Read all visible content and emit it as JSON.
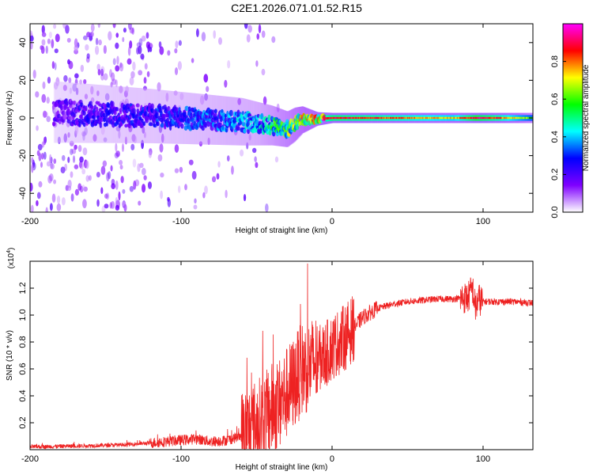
{
  "title": "C2E1.2026.071.01.52.R15",
  "chart_data": [
    {
      "type": "heatmap",
      "xlabel": "Height of straight line (km)",
      "ylabel": "Frequency (Hz)",
      "xlim": [
        -200,
        133
      ],
      "ylim": [
        -50,
        50
      ],
      "xticks": [
        -200,
        -100,
        0,
        100
      ],
      "yticks": [
        -40,
        -20,
        0,
        20,
        40
      ],
      "colorbar": {
        "label": "Normalized spectral amplitude",
        "range": [
          0,
          1
        ],
        "ticks": [
          0.0,
          0.2,
          0.4,
          0.6,
          0.8
        ],
        "tick_labels": [
          "0.0",
          "0.2",
          "0.4",
          "0.6",
          "0.8"
        ],
        "colormap": [
          "#ffffff",
          "#7f00ff",
          "#0000ff",
          "#00ffff",
          "#00ff00",
          "#ffff00",
          "#ff0000",
          "#ff00ff"
        ]
      },
      "band_center": [
        {
          "x": -180,
          "f": 3
        },
        {
          "x": -150,
          "f": 2
        },
        {
          "x": -120,
          "f": 1
        },
        {
          "x": -100,
          "f": 0
        },
        {
          "x": -80,
          "f": -1
        },
        {
          "x": -60,
          "f": -2
        },
        {
          "x": -40,
          "f": -4
        },
        {
          "x": -30,
          "f": -6
        },
        {
          "x": -20,
          "f": -1
        },
        {
          "x": 0,
          "f": 0
        },
        {
          "x": 50,
          "f": 0
        },
        {
          "x": 100,
          "f": 0
        },
        {
          "x": 133,
          "f": 0
        }
      ],
      "band_halfwidth": [
        {
          "x": -180,
          "w": 9
        },
        {
          "x": -120,
          "w": 8
        },
        {
          "x": -60,
          "w": 7
        },
        {
          "x": -25,
          "w": 5
        },
        {
          "x": -10,
          "w": 2
        },
        {
          "x": 0,
          "w": 1.5
        },
        {
          "x": 133,
          "w": 1.5
        }
      ],
      "band_amplitude": [
        {
          "x": -200,
          "a": 0.15
        },
        {
          "x": -150,
          "a": 0.25
        },
        {
          "x": -100,
          "a": 0.3
        },
        {
          "x": -50,
          "a": 0.4
        },
        {
          "x": -20,
          "a": 0.7
        },
        {
          "x": 0,
          "a": 0.9
        },
        {
          "x": 30,
          "a": 0.85
        },
        {
          "x": 80,
          "a": 0.75
        },
        {
          "x": 95,
          "a": 0.95
        },
        {
          "x": 110,
          "a": 0.85
        },
        {
          "x": 133,
          "a": 0.6
        }
      ]
    },
    {
      "type": "line",
      "xlabel": "Height of straight line (km)",
      "ylabel": "SNR (10 * v/v)",
      "y_multiplier": "(x10^4)",
      "xlim": [
        -200,
        133
      ],
      "ylim": [
        0,
        1.4
      ],
      "xticks": [
        -200,
        -100,
        0,
        100
      ],
      "yticks": [
        0.2,
        0.4,
        0.6,
        0.8,
        1.0,
        1.2
      ],
      "ytick_labels": [
        "0.2",
        "0.4",
        "0.6",
        "0.8",
        "1.0",
        "1.2"
      ],
      "color": "#ee2222",
      "series": [
        {
          "name": "",
          "x": [
            -200,
            -180,
            -160,
            -140,
            -120,
            -110,
            -100,
            -90,
            -80,
            -70,
            -60,
            -50,
            -45,
            -40,
            -35,
            -30,
            -25,
            -20,
            -15,
            -10,
            -5,
            0,
            10,
            20,
            30,
            40,
            50,
            60,
            70,
            80,
            90,
            93,
            95,
            97,
            100,
            110,
            120,
            133
          ],
          "y": [
            0.02,
            0.025,
            0.03,
            0.035,
            0.05,
            0.06,
            0.07,
            0.08,
            0.06,
            0.07,
            0.1,
            0.18,
            0.22,
            0.3,
            0.34,
            0.42,
            0.5,
            0.6,
            0.62,
            0.67,
            0.7,
            0.76,
            0.85,
            0.98,
            1.05,
            1.08,
            1.1,
            1.11,
            1.12,
            1.12,
            1.13,
            1.2,
            1.05,
            1.12,
            1.1,
            1.1,
            1.1,
            1.09
          ]
        }
      ]
    }
  ]
}
